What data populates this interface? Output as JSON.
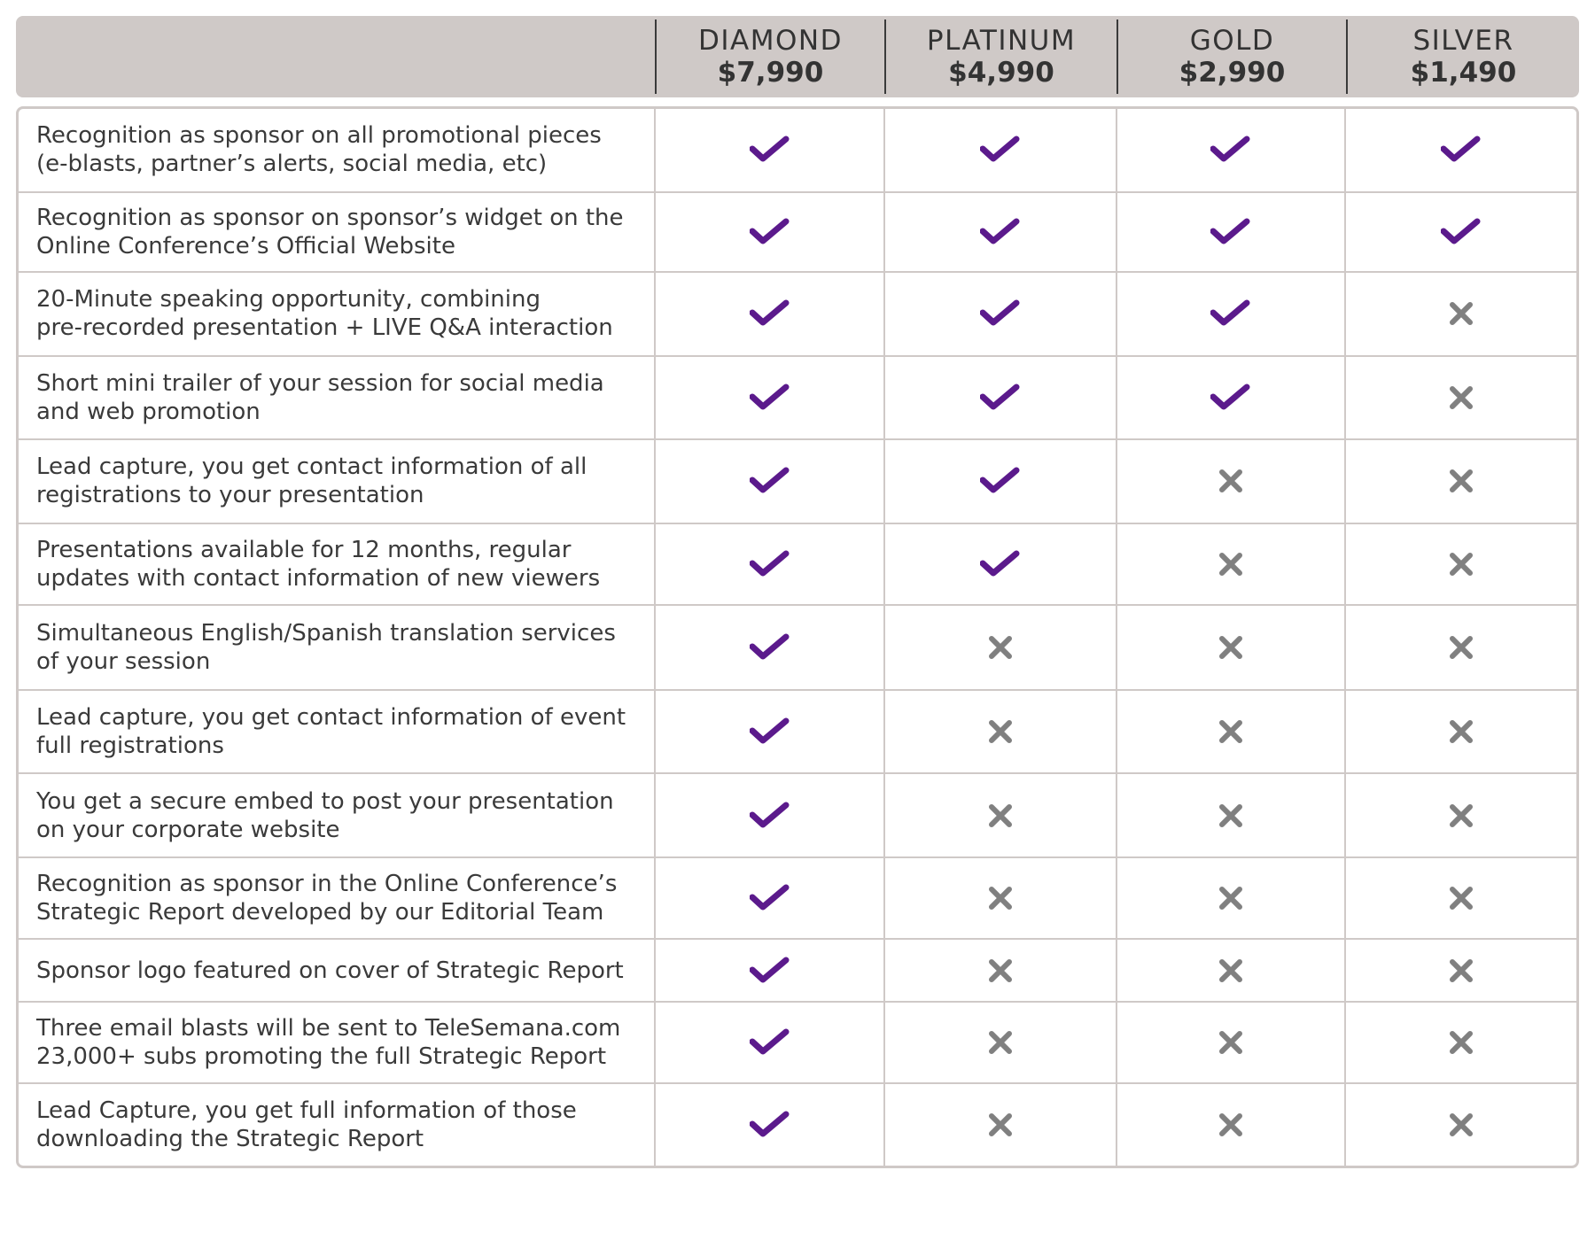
{
  "header": {
    "tiers": [
      {
        "name": "DIAMOND",
        "price": "$7,990"
      },
      {
        "name": "PLATINUM",
        "price": "$4,990"
      },
      {
        "name": "GOLD",
        "price": "$2,990"
      },
      {
        "name": "SILVER",
        "price": "$1,490"
      }
    ]
  },
  "colors": {
    "check": "#5b1a8c",
    "cross": "#808080",
    "header_bg": "#cfc9c7",
    "border": "#cfc9c7"
  },
  "icons": {
    "yes": "checkmark-icon",
    "no": "cross-icon"
  },
  "rows": [
    {
      "feature": [
        "Recognition as sponsor on all promotional pieces",
        "(e-blasts, partner’s alerts, social media, etc)"
      ],
      "marks": [
        true,
        true,
        true,
        true
      ]
    },
    {
      "feature": [
        "Recognition as sponsor on sponsor’s widget on the",
        "Online Conference’s Official Website"
      ],
      "marks": [
        true,
        true,
        true,
        true
      ]
    },
    {
      "feature": [
        "20-Minute speaking opportunity, combining",
        "pre-recorded presentation + LIVE Q&A interaction"
      ],
      "marks": [
        true,
        true,
        true,
        false
      ]
    },
    {
      "feature": [
        "Short mini trailer of your session for social media",
        "and web promotion"
      ],
      "marks": [
        true,
        true,
        true,
        false
      ]
    },
    {
      "feature": [
        "Lead capture, you get contact information of all",
        "registrations to your presentation"
      ],
      "marks": [
        true,
        true,
        false,
        false
      ]
    },
    {
      "feature": [
        "Presentations available for 12 months, regular",
        "updates with contact information of new viewers"
      ],
      "marks": [
        true,
        true,
        false,
        false
      ]
    },
    {
      "feature": [
        "Simultaneous English/Spanish translation services",
        "of your session"
      ],
      "marks": [
        true,
        false,
        false,
        false
      ]
    },
    {
      "feature": [
        "Lead capture, you get contact information of event",
        "full registrations"
      ],
      "marks": [
        true,
        false,
        false,
        false
      ]
    },
    {
      "feature": [
        "You get a secure embed to post your presentation",
        "on your corporate website"
      ],
      "marks": [
        true,
        false,
        false,
        false
      ]
    },
    {
      "feature": [
        "Recognition as sponsor in the Online Conference’s",
        "Strategic Report developed by our Editorial Team"
      ],
      "marks": [
        true,
        false,
        false,
        false
      ]
    },
    {
      "feature": [
        "Sponsor logo featured on cover of Strategic Report"
      ],
      "marks": [
        true,
        false,
        false,
        false
      ]
    },
    {
      "feature": [
        "Three email blasts will be sent to TeleSemana.com",
        "23,000+ subs promoting the full Strategic Report"
      ],
      "marks": [
        true,
        false,
        false,
        false
      ]
    },
    {
      "feature": [
        "Lead Capture, you get full information of those",
        "downloading the Strategic Report"
      ],
      "marks": [
        true,
        false,
        false,
        false
      ]
    }
  ]
}
